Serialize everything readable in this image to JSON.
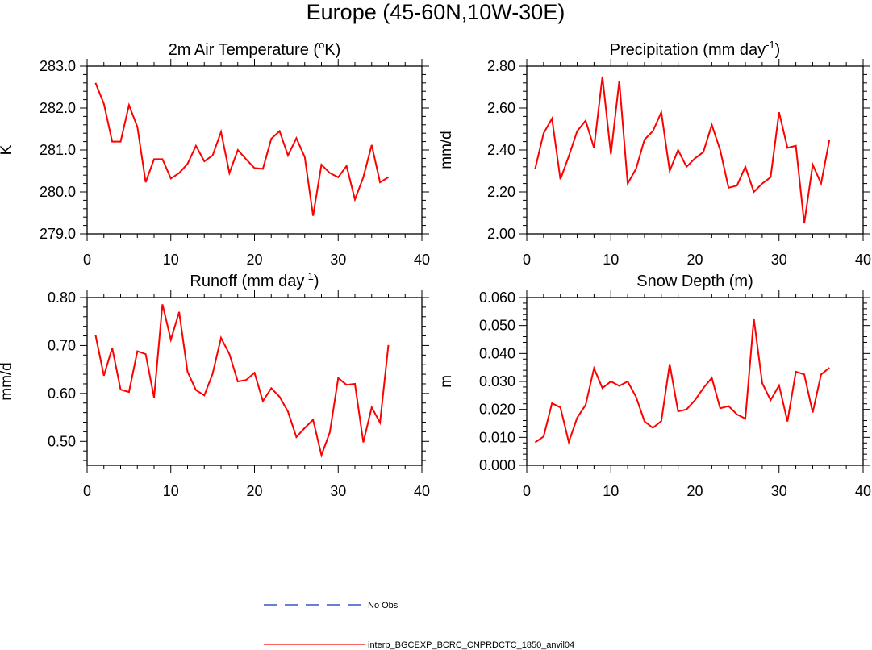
{
  "figure_title": "Europe (45-60N,10W-30E)",
  "legend": [
    {
      "label": "No Obs",
      "color": "#3355cc",
      "dashed": true
    },
    {
      "label": "interp_BGCEXP_BCRC_CNPRDCTC_1850_anvil04",
      "color": "#ff0000",
      "dashed": false
    }
  ],
  "colors": {
    "series": "#ff0000",
    "obs": "#3355cc"
  },
  "chart_data": [
    {
      "type": "line",
      "title": "2m Air Temperature (",
      "title_sup": "o",
      "title_end": "K)",
      "ylabel": "K",
      "xlabel": "",
      "xlim": [
        0,
        40
      ],
      "ylim": [
        279.0,
        283.0
      ],
      "xticks": [
        0,
        10,
        20,
        30,
        40
      ],
      "yticks": [
        279.0,
        280.0,
        281.0,
        282.0,
        283.0
      ],
      "ytick_labels": [
        "279.0",
        "280.0",
        "281.0",
        "282.0",
        "283.0"
      ],
      "yminor": 0.2,
      "x": [
        1,
        2,
        3,
        4,
        5,
        6,
        7,
        8,
        9,
        10,
        11,
        12,
        13,
        14,
        15,
        16,
        17,
        18,
        19,
        20,
        21,
        22,
        23,
        24,
        25,
        26,
        27,
        28,
        29,
        30,
        31,
        32,
        33,
        34,
        35,
        36
      ],
      "series": [
        {
          "name": "interp_BGCEXP_BCRC_CNPRDCTC_1850_anvil04",
          "values": [
            282.6,
            282.1,
            281.2,
            281.2,
            282.07,
            281.55,
            280.23,
            280.78,
            280.78,
            280.32,
            280.45,
            280.67,
            281.1,
            280.73,
            280.87,
            281.43,
            280.45,
            281.0,
            280.78,
            280.57,
            280.55,
            281.27,
            281.45,
            280.87,
            281.28,
            280.83,
            279.43,
            280.65,
            280.45,
            280.35,
            280.62,
            279.82,
            280.35,
            281.12,
            280.23,
            280.35
          ]
        }
      ]
    },
    {
      "type": "line",
      "title": "Precipitation (mm day",
      "title_sup": "-1",
      "title_end": ")",
      "ylabel": "mm/d",
      "xlabel": "",
      "xlim": [
        0,
        40
      ],
      "ylim": [
        2.0,
        2.8
      ],
      "xticks": [
        0,
        10,
        20,
        30,
        40
      ],
      "yticks": [
        2.0,
        2.2,
        2.4,
        2.6,
        2.8
      ],
      "ytick_labels": [
        "2.00",
        "2.20",
        "2.40",
        "2.60",
        "2.80"
      ],
      "yminor": 0.04,
      "x": [
        1,
        2,
        3,
        4,
        5,
        6,
        7,
        8,
        9,
        10,
        11,
        12,
        13,
        14,
        15,
        16,
        17,
        18,
        19,
        20,
        21,
        22,
        23,
        24,
        25,
        26,
        27,
        28,
        29,
        30,
        31,
        32,
        33,
        34,
        35,
        36
      ],
      "series": [
        {
          "name": "interp_BGCEXP_BCRC_CNPRDCTC_1850_anvil04",
          "values": [
            2.31,
            2.48,
            2.55,
            2.26,
            2.37,
            2.49,
            2.54,
            2.41,
            2.75,
            2.38,
            2.73,
            2.24,
            2.31,
            2.45,
            2.49,
            2.58,
            2.3,
            2.4,
            2.32,
            2.36,
            2.39,
            2.52,
            2.4,
            2.22,
            2.23,
            2.32,
            2.2,
            2.24,
            2.27,
            2.58,
            2.41,
            2.42,
            2.05,
            2.33,
            2.24,
            2.45
          ]
        }
      ]
    },
    {
      "type": "line",
      "title": "Runoff (mm day",
      "title_sup": "-1",
      "title_end": ")",
      "ylabel": "mm/d",
      "xlabel": "",
      "xlim": [
        0,
        40
      ],
      "ylim": [
        0.45,
        0.8
      ],
      "xticks": [
        0,
        10,
        20,
        30,
        40
      ],
      "yticks": [
        0.5,
        0.6,
        0.7,
        0.8
      ],
      "ytick_labels": [
        "0.50",
        "0.60",
        "0.70",
        "0.80"
      ],
      "yminor": 0.02,
      "x": [
        1,
        2,
        3,
        4,
        5,
        6,
        7,
        8,
        9,
        10,
        11,
        12,
        13,
        14,
        15,
        16,
        17,
        18,
        19,
        20,
        21,
        22,
        23,
        24,
        25,
        26,
        27,
        28,
        29,
        30,
        31,
        32,
        33,
        34,
        35,
        36
      ],
      "series": [
        {
          "name": "interp_BGCEXP_BCRC_CNPRDCTC_1850_anvil04",
          "values": [
            0.722,
            0.637,
            0.695,
            0.608,
            0.603,
            0.688,
            0.682,
            0.591,
            0.786,
            0.712,
            0.77,
            0.645,
            0.607,
            0.596,
            0.641,
            0.716,
            0.682,
            0.625,
            0.628,
            0.643,
            0.584,
            0.611,
            0.593,
            0.562,
            0.509,
            0.528,
            0.545,
            0.471,
            0.519,
            0.632,
            0.618,
            0.62,
            0.498,
            0.571,
            0.539,
            0.701
          ]
        }
      ]
    },
    {
      "type": "line",
      "title": "Snow Depth (m)",
      "title_sup": "",
      "title_end": "",
      "ylabel": "m",
      "xlabel": "",
      "xlim": [
        0,
        40
      ],
      "ylim": [
        0.0,
        0.06
      ],
      "xticks": [
        0,
        10,
        20,
        30,
        40
      ],
      "yticks": [
        0.0,
        0.01,
        0.02,
        0.03,
        0.04,
        0.05,
        0.06
      ],
      "ytick_labels": [
        "0.000",
        "0.010",
        "0.020",
        "0.030",
        "0.040",
        "0.050",
        "0.060"
      ],
      "yminor": 0.002,
      "x": [
        1,
        2,
        3,
        4,
        5,
        6,
        7,
        8,
        9,
        10,
        11,
        12,
        13,
        14,
        15,
        16,
        17,
        18,
        19,
        20,
        21,
        22,
        23,
        24,
        25,
        26,
        27,
        28,
        29,
        30,
        31,
        32,
        33,
        34,
        35,
        36
      ],
      "series": [
        {
          "name": "interp_BGCEXP_BCRC_CNPRDCTC_1850_anvil04",
          "values": [
            0.0082,
            0.0103,
            0.0222,
            0.0207,
            0.0083,
            0.017,
            0.0216,
            0.0347,
            0.0276,
            0.03,
            0.0284,
            0.03,
            0.0245,
            0.0157,
            0.0134,
            0.0158,
            0.0362,
            0.0193,
            0.02,
            0.0233,
            0.0276,
            0.0313,
            0.0204,
            0.0212,
            0.0182,
            0.0167,
            0.0525,
            0.0294,
            0.0233,
            0.0286,
            0.0157,
            0.0335,
            0.0325,
            0.0189,
            0.0325,
            0.0349
          ]
        }
      ]
    }
  ]
}
